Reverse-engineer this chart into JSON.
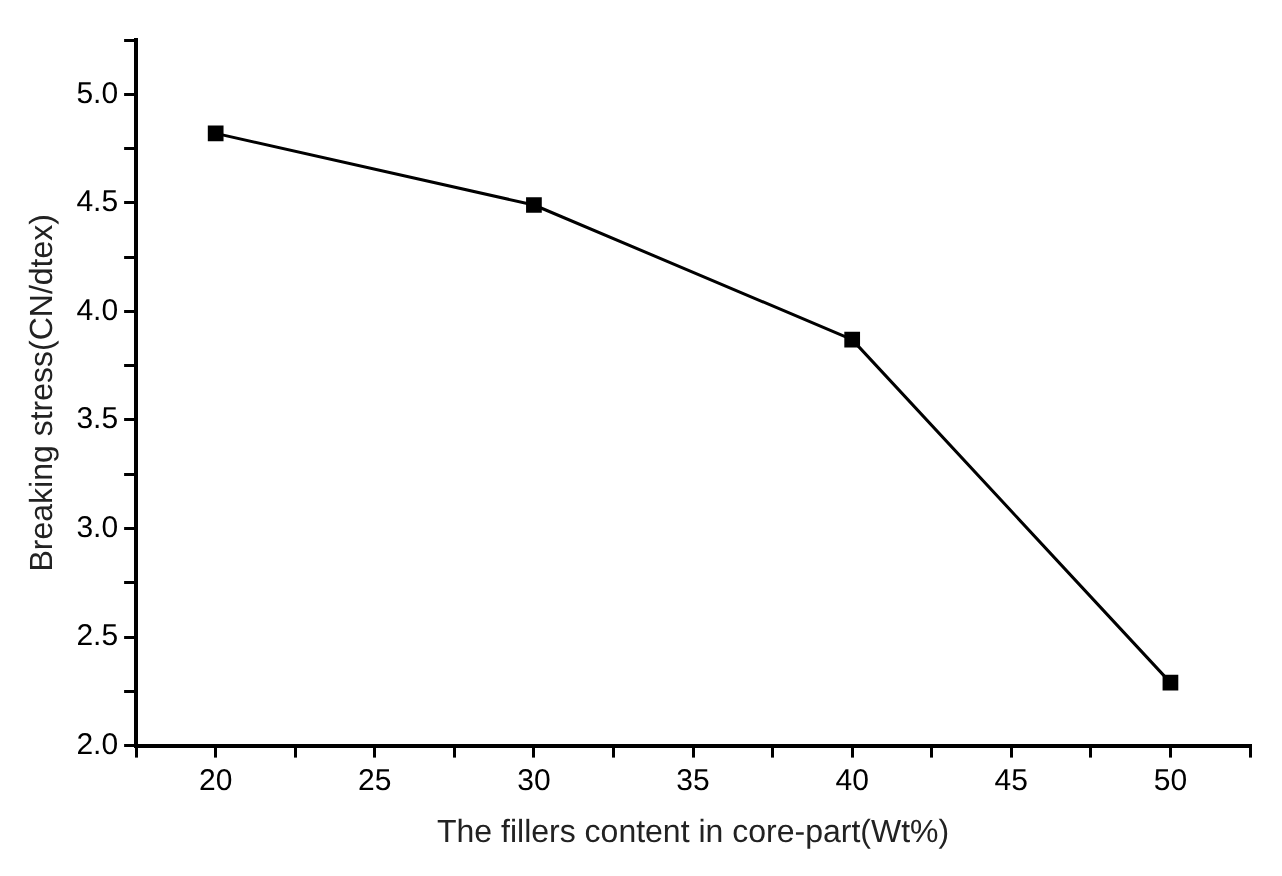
{
  "chart_data": {
    "type": "line",
    "xlabel": "The fillers content in core-part(Wt%)",
    "ylabel": "Breaking stress(CN/dtex)",
    "x": [
      20,
      30,
      40,
      50
    ],
    "series": [
      {
        "color": "#000000",
        "values": [
          4.82,
          4.49,
          3.87,
          2.29
        ]
      }
    ],
    "xlim": [
      17.5,
      52.5
    ],
    "xticks": [
      {
        "value": 17.5,
        "label": null
      },
      20,
      {
        "value": 22.5,
        "label": null
      },
      25,
      {
        "value": 27.5,
        "label": null
      },
      30,
      {
        "value": 32.5,
        "label": null
      },
      35,
      {
        "value": 37.5,
        "label": null
      },
      40,
      {
        "value": 42.5,
        "label": null
      },
      45,
      {
        "value": 47.5,
        "label": null
      },
      50,
      {
        "value": 52.5,
        "label": null
      }
    ],
    "ylim": [
      2,
      5.25
    ],
    "yticks": [
      {
        "value": 2,
        "label": "2.0"
      },
      {
        "value": 2.25,
        "label": null
      },
      {
        "value": 2.5,
        "label": "2.5"
      },
      {
        "value": 2.75,
        "label": null
      },
      {
        "value": 3,
        "label": "3.0"
      },
      {
        "value": 3.25,
        "label": null
      },
      {
        "value": 3.5,
        "label": "3.5"
      },
      {
        "value": 3.75,
        "label": null
      },
      {
        "value": 4,
        "label": "4.0"
      },
      {
        "value": 4.25,
        "label": null
      },
      {
        "value": 4.5,
        "label": "4.5"
      },
      {
        "value": 4.75,
        "label": null
      },
      {
        "value": 5,
        "label": "5.0"
      },
      {
        "value": 5.25,
        "label": null
      }
    ],
    "grid": false,
    "legend": false,
    "marker": "square",
    "line_style": "solid"
  }
}
